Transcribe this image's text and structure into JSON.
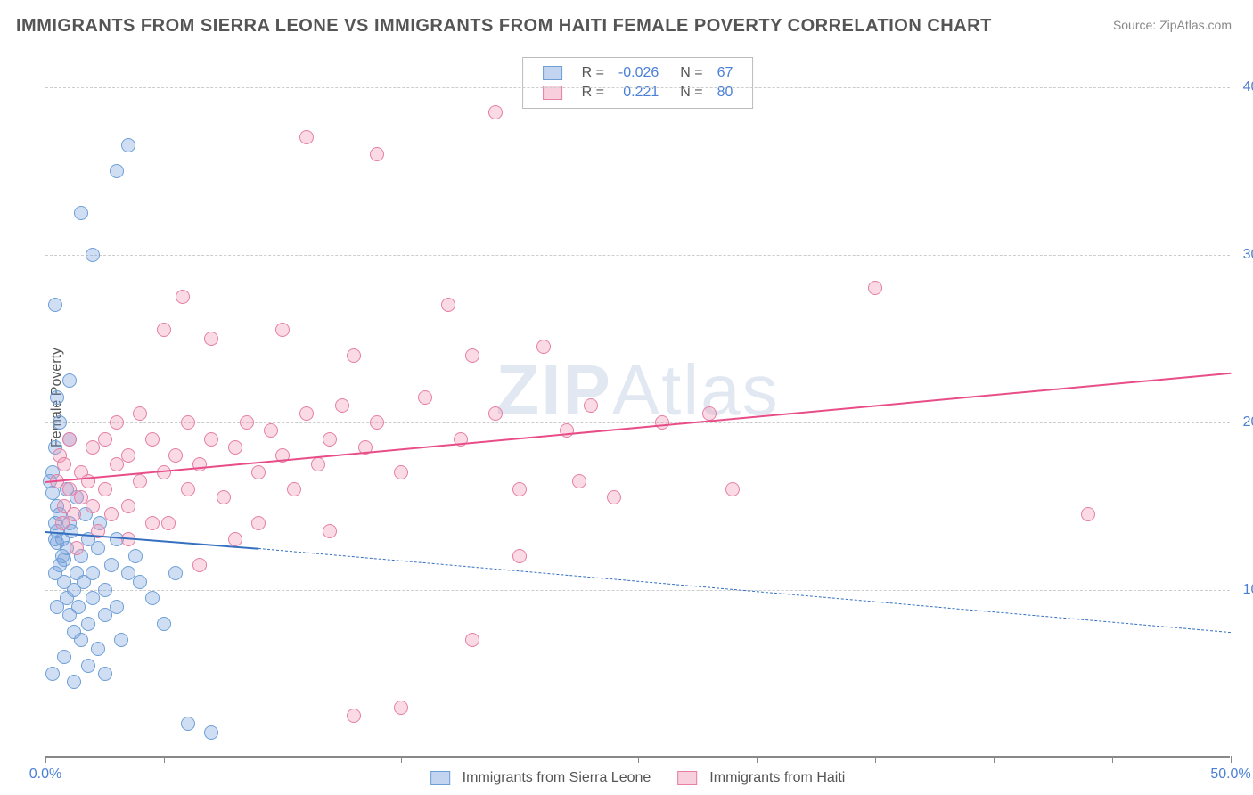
{
  "title": "IMMIGRANTS FROM SIERRA LEONE VS IMMIGRANTS FROM HAITI FEMALE POVERTY CORRELATION CHART",
  "source": "Source: ZipAtlas.com",
  "ylabel": "Female Poverty",
  "watermark_bold": "ZIP",
  "watermark_rest": "Atlas",
  "chart": {
    "type": "scatter",
    "xlim": [
      0,
      50
    ],
    "ylim": [
      0,
      42
    ],
    "x_ticks": [
      0,
      5,
      10,
      15,
      20,
      25,
      30,
      35,
      40,
      45,
      50
    ],
    "x_tick_labels": {
      "0": "0.0%",
      "50": "50.0%"
    },
    "y_gridlines": [
      10,
      20,
      30,
      40
    ],
    "y_tick_labels": {
      "10": "10.0%",
      "20": "20.0%",
      "30": "30.0%",
      "40": "40.0%"
    },
    "grid_color": "#cccccc",
    "axis_label_color": "#4a7fd6",
    "background_color": "#ffffff",
    "marker_radius": 8,
    "marker_border_width": 1.5,
    "trend_line_width": 2
  },
  "series": [
    {
      "name": "Immigrants from Sierra Leone",
      "fill": "rgba(120,160,220,0.35)",
      "stroke": "#6d9fd6",
      "trend": {
        "x0": 0,
        "y0": 13.5,
        "x1": 9,
        "y1": 12.5,
        "dash_to_x": 50,
        "dash_to_y": 7.5,
        "color": "#3570c0"
      },
      "R": "-0.026",
      "N": "67",
      "points": [
        [
          0.2,
          16.5
        ],
        [
          0.3,
          17.0
        ],
        [
          0.3,
          15.8
        ],
        [
          0.4,
          18.5
        ],
        [
          0.4,
          14.0
        ],
        [
          0.5,
          13.5
        ],
        [
          0.5,
          12.8
        ],
        [
          0.5,
          15.0
        ],
        [
          0.6,
          11.5
        ],
        [
          0.6,
          14.5
        ],
        [
          0.7,
          13.0
        ],
        [
          0.7,
          12.0
        ],
        [
          0.8,
          10.5
        ],
        [
          0.8,
          11.8
        ],
        [
          0.9,
          9.5
        ],
        [
          0.9,
          12.5
        ],
        [
          1.0,
          14.0
        ],
        [
          1.0,
          8.5
        ],
        [
          1.1,
          13.5
        ],
        [
          1.2,
          10.0
        ],
        [
          1.2,
          7.5
        ],
        [
          1.3,
          11.0
        ],
        [
          1.4,
          9.0
        ],
        [
          1.5,
          12.0
        ],
        [
          1.5,
          7.0
        ],
        [
          1.6,
          10.5
        ],
        [
          1.8,
          8.0
        ],
        [
          1.8,
          13.0
        ],
        [
          2.0,
          11.0
        ],
        [
          2.0,
          9.5
        ],
        [
          2.2,
          6.5
        ],
        [
          2.2,
          12.5
        ],
        [
          2.5,
          10.0
        ],
        [
          2.5,
          8.5
        ],
        [
          2.8,
          11.5
        ],
        [
          3.0,
          9.0
        ],
        [
          3.0,
          13.0
        ],
        [
          3.2,
          7.0
        ],
        [
          3.5,
          11.0
        ],
        [
          3.8,
          12.0
        ],
        [
          4.0,
          10.5
        ],
        [
          4.5,
          9.5
        ],
        [
          5.0,
          8.0
        ],
        [
          5.5,
          11.0
        ],
        [
          1.0,
          19.0
        ],
        [
          0.5,
          21.5
        ],
        [
          0.4,
          27.0
        ],
        [
          2.0,
          30.0
        ],
        [
          1.5,
          32.5
        ],
        [
          3.0,
          35.0
        ],
        [
          3.5,
          36.5
        ],
        [
          0.3,
          5.0
        ],
        [
          0.8,
          6.0
        ],
        [
          1.2,
          4.5
        ],
        [
          1.8,
          5.5
        ],
        [
          6.0,
          2.0
        ],
        [
          7.0,
          1.5
        ],
        [
          2.5,
          5.0
        ],
        [
          0.6,
          20.0
        ],
        [
          1.0,
          22.5
        ],
        [
          0.4,
          11.0
        ],
        [
          0.4,
          13.0
        ],
        [
          0.5,
          9.0
        ],
        [
          1.3,
          15.5
        ],
        [
          1.7,
          14.5
        ],
        [
          2.3,
          14.0
        ],
        [
          0.9,
          16.0
        ]
      ]
    },
    {
      "name": "Immigrants from Haiti",
      "fill": "rgba(240,150,180,0.35)",
      "stroke": "#e67fa5",
      "trend": {
        "x0": 0,
        "y0": 16.5,
        "x1": 50,
        "y1": 23.0,
        "color": "#e84d88"
      },
      "R": "0.221",
      "N": "80",
      "points": [
        [
          0.5,
          16.5
        ],
        [
          0.6,
          18.0
        ],
        [
          0.8,
          15.0
        ],
        [
          0.8,
          17.5
        ],
        [
          1.0,
          16.0
        ],
        [
          1.0,
          19.0
        ],
        [
          1.2,
          14.5
        ],
        [
          1.5,
          17.0
        ],
        [
          1.5,
          15.5
        ],
        [
          1.8,
          16.5
        ],
        [
          2.0,
          18.5
        ],
        [
          2.0,
          15.0
        ],
        [
          2.2,
          13.5
        ],
        [
          2.5,
          19.0
        ],
        [
          2.5,
          16.0
        ],
        [
          3.0,
          17.5
        ],
        [
          3.0,
          20.0
        ],
        [
          3.5,
          15.0
        ],
        [
          3.5,
          18.0
        ],
        [
          4.0,
          16.5
        ],
        [
          4.0,
          20.5
        ],
        [
          4.5,
          14.0
        ],
        [
          4.5,
          19.0
        ],
        [
          5.0,
          17.0
        ],
        [
          5.0,
          25.5
        ],
        [
          5.5,
          18.0
        ],
        [
          5.8,
          27.5
        ],
        [
          6.0,
          16.0
        ],
        [
          6.0,
          20.0
        ],
        [
          6.5,
          17.5
        ],
        [
          7.0,
          19.0
        ],
        [
          7.0,
          25.0
        ],
        [
          7.5,
          15.5
        ],
        [
          8.0,
          18.5
        ],
        [
          8.0,
          13.0
        ],
        [
          8.5,
          20.0
        ],
        [
          9.0,
          17.0
        ],
        [
          9.0,
          14.0
        ],
        [
          9.5,
          19.5
        ],
        [
          10.0,
          18.0
        ],
        [
          10.0,
          25.5
        ],
        [
          10.5,
          16.0
        ],
        [
          11.0,
          20.5
        ],
        [
          11.0,
          37.0
        ],
        [
          11.5,
          17.5
        ],
        [
          12.0,
          19.0
        ],
        [
          12.5,
          21.0
        ],
        [
          13.0,
          24.0
        ],
        [
          13.0,
          2.5
        ],
        [
          13.5,
          18.5
        ],
        [
          14.0,
          20.0
        ],
        [
          14.0,
          36.0
        ],
        [
          15.0,
          17.0
        ],
        [
          15.0,
          3.0
        ],
        [
          16.0,
          21.5
        ],
        [
          17.0,
          27.0
        ],
        [
          17.5,
          19.0
        ],
        [
          18.0,
          24.0
        ],
        [
          19.0,
          20.5
        ],
        [
          19.0,
          38.5
        ],
        [
          20.0,
          16.0
        ],
        [
          20.0,
          12.0
        ],
        [
          21.0,
          24.5
        ],
        [
          22.0,
          19.5
        ],
        [
          22.5,
          16.5
        ],
        [
          23.0,
          21.0
        ],
        [
          24.0,
          15.5
        ],
        [
          26.0,
          20.0
        ],
        [
          28.0,
          20.5
        ],
        [
          29.0,
          16.0
        ],
        [
          35.0,
          28.0
        ],
        [
          44.0,
          14.5
        ],
        [
          18.0,
          7.0
        ],
        [
          3.5,
          13.0
        ],
        [
          6.5,
          11.5
        ],
        [
          12.0,
          13.5
        ],
        [
          1.3,
          12.5
        ],
        [
          0.7,
          14.0
        ],
        [
          2.8,
          14.5
        ],
        [
          5.2,
          14.0
        ]
      ]
    }
  ],
  "legend_top": {
    "R_label": "R =",
    "N_label": "N ="
  },
  "legend_bottom": [
    {
      "swatch_fill": "rgba(120,160,220,0.45)",
      "swatch_stroke": "#6d9fd6",
      "label": "Immigrants from Sierra Leone"
    },
    {
      "swatch_fill": "rgba(240,150,180,0.45)",
      "swatch_stroke": "#e67fa5",
      "label": "Immigrants from Haiti"
    }
  ]
}
